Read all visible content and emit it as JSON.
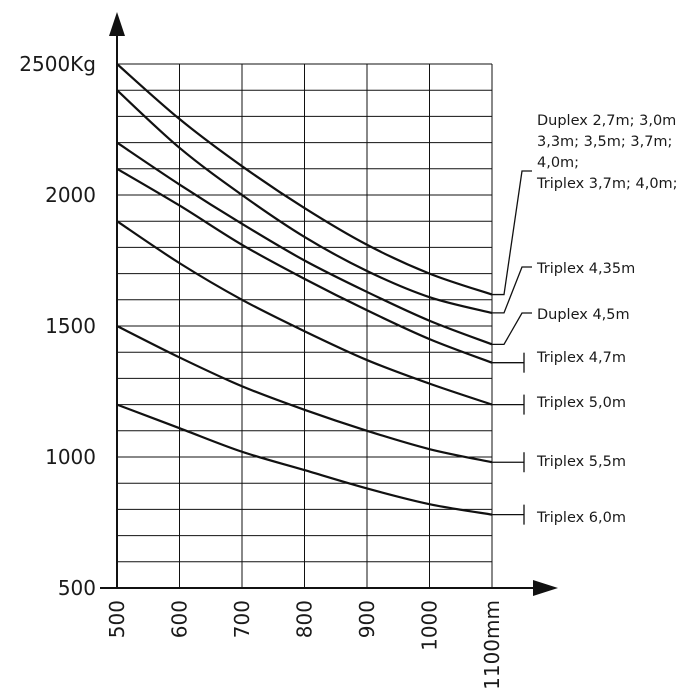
{
  "chart_data": {
    "type": "line",
    "x_tick_labels": [
      "500",
      "600",
      "700",
      "800",
      "900",
      "1000",
      "1100mm"
    ],
    "y_tick_labels": [
      "500",
      "1000",
      "1500",
      "2000",
      "2500Kg"
    ],
    "x_ticks": [
      500,
      600,
      700,
      800,
      900,
      1000,
      1100
    ],
    "y_ticks": [
      500,
      1000,
      1500,
      2000,
      2500
    ],
    "xlim": [
      500,
      1100
    ],
    "ylim": [
      500,
      2500
    ],
    "grid": true,
    "series": [
      {
        "name": "Duplex 2,7m; 3,0m; 3,3m; 3,5m; 3,7m; 4,0m; Triplex 3,7m; 4,0m;",
        "label_lines": [
          "Duplex 2,7m; 3,0m;",
          "3,3m; 3,5m; 3,7m;",
          "4,0m;",
          "Triplex 3,7m; 4,0m;"
        ],
        "x": [
          500,
          600,
          700,
          800,
          900,
          1000,
          1100
        ],
        "y": [
          2500,
          2290,
          2110,
          1950,
          1810,
          1700,
          1620
        ]
      },
      {
        "name": "Triplex 4,35m",
        "label_lines": [
          "Triplex 4,35m"
        ],
        "x": [
          500,
          600,
          700,
          800,
          900,
          1000,
          1100
        ],
        "y": [
          2400,
          2180,
          2000,
          1840,
          1710,
          1610,
          1550
        ]
      },
      {
        "name": "Duplex 4,5m",
        "label_lines": [
          "Duplex 4,5m"
        ],
        "x": [
          500,
          600,
          700,
          800,
          900,
          1000,
          1100
        ],
        "y": [
          2200,
          2040,
          1890,
          1750,
          1630,
          1520,
          1430
        ]
      },
      {
        "name": "Triplex 4,7m",
        "label_lines": [
          "Triplex 4,7m"
        ],
        "x": [
          500,
          600,
          700,
          800,
          900,
          1000,
          1100
        ],
        "y": [
          2100,
          1960,
          1810,
          1680,
          1560,
          1450,
          1360
        ]
      },
      {
        "name": "Triplex 5,0m",
        "label_lines": [
          "Triplex 5,0m"
        ],
        "x": [
          500,
          600,
          700,
          800,
          900,
          1000,
          1100
        ],
        "y": [
          1900,
          1740,
          1600,
          1480,
          1370,
          1280,
          1200
        ]
      },
      {
        "name": "Triplex 5,5m",
        "label_lines": [
          "Triplex 5,5m"
        ],
        "x": [
          500,
          600,
          700,
          800,
          900,
          1000,
          1100
        ],
        "y": [
          1500,
          1380,
          1270,
          1180,
          1100,
          1030,
          980
        ]
      },
      {
        "name": "Triplex 6,0m",
        "label_lines": [
          "Triplex 6,0m"
        ],
        "x": [
          500,
          600,
          700,
          800,
          900,
          1000,
          1100
        ],
        "y": [
          1200,
          1110,
          1020,
          950,
          880,
          820,
          780
        ]
      }
    ]
  }
}
